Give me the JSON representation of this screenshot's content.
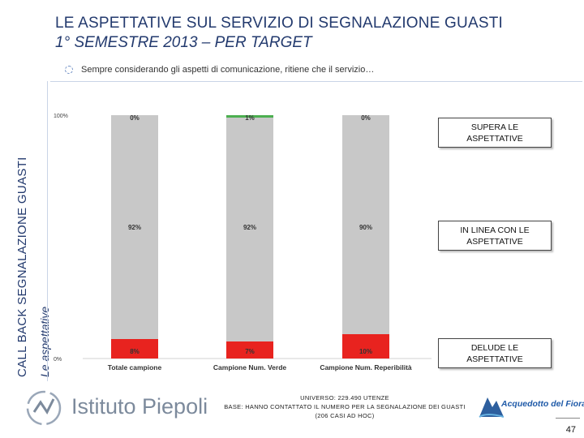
{
  "header": {
    "title_line1": "LE ASPETTATIVE SUL SERVIZIO DI SEGNALAZIONE GUASTI",
    "title_line2": "1° SEMESTRE 2013 – PER TARGET",
    "vertical_title": "CALL BACK SEGNALAZIONE GUASTI",
    "vertical_subtitle": "Le aspettative",
    "question": "Sempre considerando gli aspetti di comunicazione, ritiene che il servizio…"
  },
  "colors": {
    "supera": "#4caf50",
    "linea": "#c8c8c8",
    "delude": "#e8231f",
    "brand_blue": "#233a6e"
  },
  "chart_data": {
    "type": "bar",
    "stacked": true,
    "categories": [
      "Totale campione",
      "Campione Num. Verde",
      "Campione Num. Reperibilità"
    ],
    "series": [
      {
        "name": "DELUDE LE ASPETTATIVE",
        "values": [
          8,
          7,
          10
        ],
        "labels": [
          "8%",
          "7%",
          "10%"
        ]
      },
      {
        "name": "IN LINEA CON LE ASPETTATIVE",
        "values": [
          92,
          92,
          90
        ],
        "labels": [
          "92%",
          "92%",
          "90%"
        ]
      },
      {
        "name": "SUPERA LE ASPETTATIVE",
        "values": [
          0,
          1,
          0
        ],
        "labels": [
          "0%",
          "1%",
          "0%"
        ]
      }
    ],
    "yticks": [
      "0%",
      "100%"
    ],
    "ylim": [
      0,
      100
    ],
    "legend_position": "right"
  },
  "legend": {
    "supera": "SUPERA LE ASPETTATIVE",
    "linea": "IN LINEA CON LE ASPETTATIVE",
    "delude": "DELUDE LE ASPETTATIVE"
  },
  "footer": {
    "logo_left": "Istituto Piepoli",
    "universo_line1": "UNIVERSO: 229.490 UTENZE",
    "universo_line2": "BASE: HANNO CONTATTATO IL NUMERO PER LA SEGNALAZIONE DEI GUASTI (206 CASI AD HOC)",
    "logo_right": "Acquedotto del Fiora",
    "page_number": "47"
  }
}
